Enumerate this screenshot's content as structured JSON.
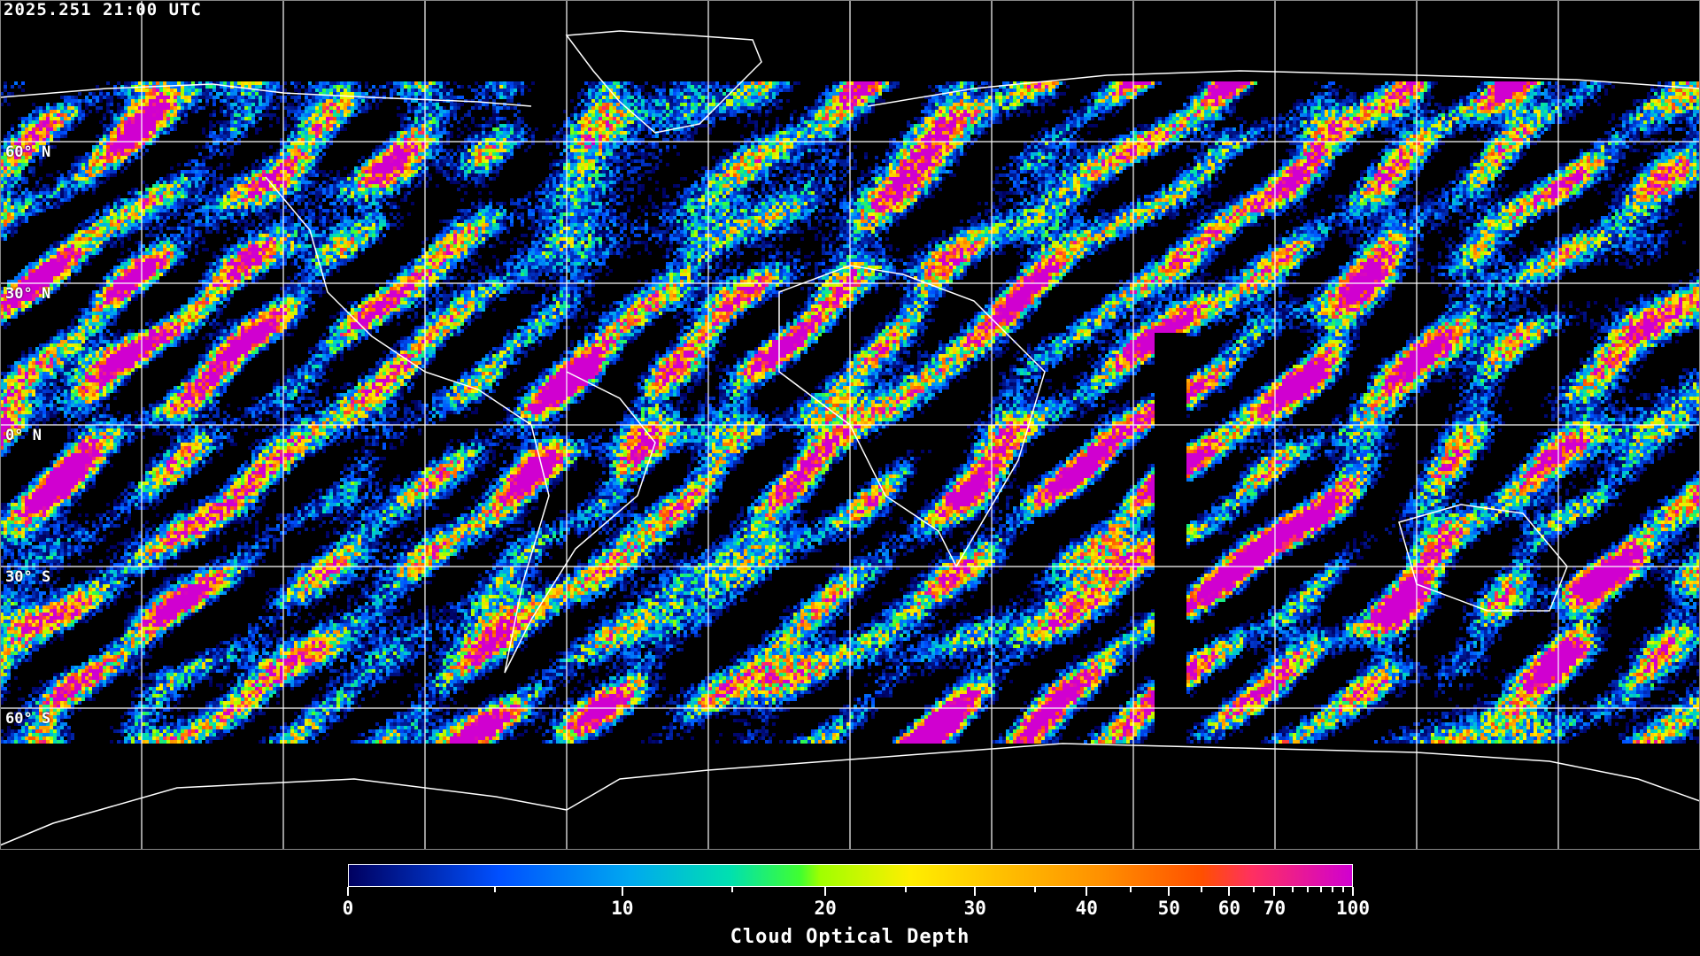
{
  "header": {
    "timestamp": "2025.251 21:00 UTC"
  },
  "map": {
    "projection": "equirectangular",
    "graticule_spacing_deg": 30,
    "latitude_labels": [
      {
        "lat": 60,
        "text": "60° N"
      },
      {
        "lat": 30,
        "text": "30° N"
      },
      {
        "lat": 0,
        "text": "0° N"
      },
      {
        "lat": -30,
        "text": "30° S"
      },
      {
        "lat": -60,
        "text": "60° S"
      }
    ],
    "coastline_color": "#ffffff",
    "grid_color": "#ffffff",
    "no_data_color": "#000000"
  },
  "colorbar": {
    "title": "Cloud Optical Depth",
    "range": [
      0,
      100
    ],
    "major_ticks": [
      {
        "value": 0,
        "label": "0"
      },
      {
        "value": 10,
        "label": "10"
      },
      {
        "value": 20,
        "label": "20"
      },
      {
        "value": 30,
        "label": "30"
      },
      {
        "value": 40,
        "label": "40"
      },
      {
        "value": 50,
        "label": "50"
      },
      {
        "value": 60,
        "label": "60"
      },
      {
        "value": 70,
        "label": "70"
      },
      {
        "value": 100,
        "label": "100"
      }
    ],
    "minor_ticks": [
      5,
      15,
      25,
      35,
      45,
      55,
      65,
      75,
      80,
      85,
      90,
      95
    ],
    "colors": [
      "#000060",
      "#0050ff",
      "#00a8f0",
      "#00e0b0",
      "#40ff30",
      "#a0ff00",
      "#ffee00",
      "#ffc000",
      "#ff9000",
      "#ff5000",
      "#ff3060",
      "#d000d0"
    ]
  }
}
